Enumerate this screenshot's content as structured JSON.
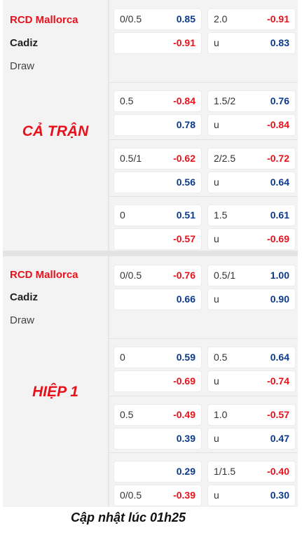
{
  "sections": [
    {
      "period": "CẢ TRẬN",
      "home": "RCD Mallorca",
      "away": "Cadiz",
      "draw": "Draw",
      "blocks": [
        {
          "rows": [
            {
              "h_label": "0/0.5",
              "h_val": "0.85",
              "h_sign": "pos",
              "t_label": "2.0",
              "t_val": "-0.91",
              "t_sign": "neg"
            },
            {
              "h_label": "",
              "h_val": "-0.91",
              "h_sign": "neg",
              "t_label": "u",
              "t_val": "0.83",
              "t_sign": "pos"
            }
          ]
        },
        {
          "rows": [
            {
              "h_label": "0.5",
              "h_val": "-0.84",
              "h_sign": "neg",
              "t_label": "1.5/2",
              "t_val": "0.76",
              "t_sign": "pos"
            },
            {
              "h_label": "",
              "h_val": "0.78",
              "h_sign": "pos",
              "t_label": "u",
              "t_val": "-0.84",
              "t_sign": "neg"
            }
          ]
        },
        {
          "rows": [
            {
              "h_label": "0.5/1",
              "h_val": "-0.62",
              "h_sign": "neg",
              "t_label": "2/2.5",
              "t_val": "-0.72",
              "t_sign": "neg"
            },
            {
              "h_label": "",
              "h_val": "0.56",
              "h_sign": "pos",
              "t_label": "u",
              "t_val": "0.64",
              "t_sign": "pos"
            }
          ]
        },
        {
          "rows": [
            {
              "h_label": "0",
              "h_val": "0.51",
              "h_sign": "pos",
              "t_label": "1.5",
              "t_val": "0.61",
              "t_sign": "pos"
            },
            {
              "h_label": "",
              "h_val": "-0.57",
              "h_sign": "neg",
              "t_label": "u",
              "t_val": "-0.69",
              "t_sign": "neg"
            }
          ]
        }
      ]
    },
    {
      "period": "HIỆP 1",
      "home": "RCD Mallorca",
      "away": "Cadiz",
      "draw": "Draw",
      "blocks": [
        {
          "rows": [
            {
              "h_label": "0/0.5",
              "h_val": "-0.76",
              "h_sign": "neg",
              "t_label": "0.5/1",
              "t_val": "1.00",
              "t_sign": "pos"
            },
            {
              "h_label": "",
              "h_val": "0.66",
              "h_sign": "pos",
              "t_label": "u",
              "t_val": "0.90",
              "t_sign": "pos"
            }
          ]
        },
        {
          "rows": [
            {
              "h_label": "0",
              "h_val": "0.59",
              "h_sign": "pos",
              "t_label": "0.5",
              "t_val": "0.64",
              "t_sign": "pos"
            },
            {
              "h_label": "",
              "h_val": "-0.69",
              "h_sign": "neg",
              "t_label": "u",
              "t_val": "-0.74",
              "t_sign": "neg"
            }
          ]
        },
        {
          "rows": [
            {
              "h_label": "0.5",
              "h_val": "-0.49",
              "h_sign": "neg",
              "t_label": "1.0",
              "t_val": "-0.57",
              "t_sign": "neg"
            },
            {
              "h_label": "",
              "h_val": "0.39",
              "h_sign": "pos",
              "t_label": "u",
              "t_val": "0.47",
              "t_sign": "pos"
            }
          ]
        },
        {
          "rows": [
            {
              "h_label": "",
              "h_val": "0.29",
              "h_sign": "pos",
              "t_label": "1/1.5",
              "t_val": "-0.40",
              "t_sign": "neg"
            },
            {
              "h_label": "0/0.5",
              "h_val": "-0.39",
              "h_sign": "neg",
              "t_label": "u",
              "t_val": "0.30",
              "t_sign": "pos"
            }
          ]
        }
      ]
    }
  ],
  "footer": "Cập nhật lúc 01h25",
  "colors": {
    "negative": "#e8101b",
    "positive": "#0b3a8c",
    "period": "#e8101b",
    "home_team": "#e8101b"
  }
}
